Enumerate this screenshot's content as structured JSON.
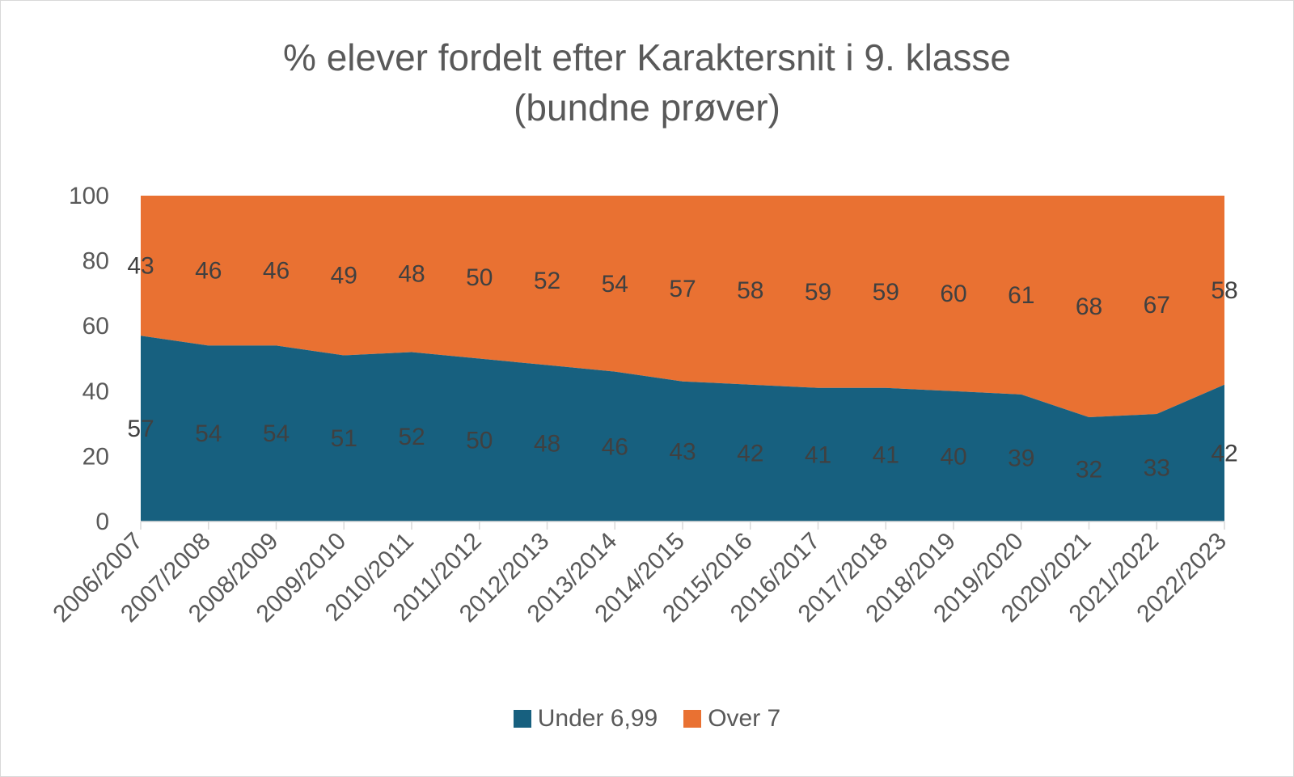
{
  "chart_data": {
    "type": "area",
    "stacked": true,
    "title_lines": [
      "% elever fordelt efter Karaktersnit i 9. klasse",
      "(bundne prøver)"
    ],
    "xlabel": "",
    "ylabel": "",
    "ylim": [
      0,
      100
    ],
    "y_ticks": [
      0,
      20,
      40,
      60,
      80,
      100
    ],
    "grid": false,
    "legend_position": "bottom",
    "categories": [
      "2006/2007",
      "2007/2008",
      "2008/2009",
      "2009/2010",
      "2010/2011",
      "2011/2012",
      "2012/2013",
      "2013/2014",
      "2014/2015",
      "2015/2016",
      "2016/2017",
      "2017/2018",
      "2018/2019",
      "2019/2020",
      "2020/2021",
      "2021/2022",
      "2022/2023"
    ],
    "series": [
      {
        "name": "Under 6,99",
        "color": "#17607f",
        "values": [
          57,
          54,
          54,
          51,
          52,
          50,
          48,
          46,
          43,
          42,
          41,
          41,
          40,
          39,
          32,
          33,
          42
        ]
      },
      {
        "name": "Over 7",
        "color": "#e97132",
        "values": [
          43,
          46,
          46,
          49,
          48,
          50,
          52,
          54,
          57,
          58,
          59,
          59,
          60,
          61,
          68,
          67,
          58
        ]
      }
    ]
  }
}
